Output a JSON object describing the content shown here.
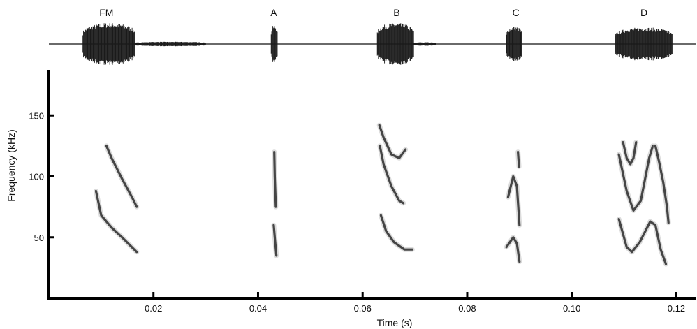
{
  "chart_data": {
    "type": "spectrogram",
    "title": "",
    "xlabel": "Time (s)",
    "ylabel": "Frequency (kHz)",
    "xlim": [
      0.0,
      0.124
    ],
    "ylim": [
      20,
      185
    ],
    "x_ticks": [
      0.02,
      0.04,
      0.06,
      0.08,
      0.1,
      0.12
    ],
    "x_tick_labels": [
      "0.02",
      "0.04",
      "0.06",
      "0.08",
      "0.10",
      "0.12"
    ],
    "y_ticks": [
      50,
      100,
      150
    ],
    "y_tick_labels": [
      "50",
      "100",
      "150"
    ],
    "waveform_labels": [
      {
        "label": "FM",
        "t": 0.011
      },
      {
        "label": "A",
        "t": 0.043
      },
      {
        "label": "B",
        "t": 0.0665
      },
      {
        "label": "C",
        "t": 0.0893
      },
      {
        "label": "D",
        "t": 0.1138
      }
    ],
    "waveform_segments": [
      {
        "t_start": 0.0065,
        "t_end": 0.0165,
        "amplitude": 0.95
      },
      {
        "t_start": 0.0165,
        "t_end": 0.03,
        "amplitude": 0.1
      },
      {
        "t_start": 0.0425,
        "t_end": 0.0437,
        "amplitude": 0.85
      },
      {
        "t_start": 0.0628,
        "t_end": 0.0698,
        "amplitude": 0.95
      },
      {
        "t_start": 0.0698,
        "t_end": 0.074,
        "amplitude": 0.08
      },
      {
        "t_start": 0.0875,
        "t_end": 0.0905,
        "amplitude": 0.8
      },
      {
        "t_start": 0.1083,
        "t_end": 0.1193,
        "amplitude": 0.75
      }
    ],
    "color": "#1a1a1a",
    "series": [
      {
        "call": "FM",
        "points": [
          [
            0.009,
            88
          ],
          [
            0.01,
            68
          ],
          [
            0.012,
            58
          ],
          [
            0.014,
            50
          ],
          [
            0.0168,
            38
          ]
        ]
      },
      {
        "call": "FM",
        "points": [
          [
            0.011,
            125
          ],
          [
            0.012,
            115
          ],
          [
            0.014,
            98
          ],
          [
            0.016,
            82
          ],
          [
            0.0168,
            75
          ]
        ]
      },
      {
        "call": "A",
        "points": [
          [
            0.043,
            60
          ],
          [
            0.0432,
            50
          ],
          [
            0.0435,
            35
          ]
        ]
      },
      {
        "call": "A",
        "points": [
          [
            0.0431,
            120
          ],
          [
            0.0432,
            100
          ],
          [
            0.0434,
            75
          ]
        ]
      },
      {
        "call": "B",
        "points": [
          [
            0.0635,
            68
          ],
          [
            0.0645,
            55
          ],
          [
            0.066,
            46
          ],
          [
            0.068,
            40
          ],
          [
            0.0695,
            40
          ]
        ]
      },
      {
        "call": "B",
        "points": [
          [
            0.0633,
            125
          ],
          [
            0.064,
            110
          ],
          [
            0.0655,
            92
          ],
          [
            0.067,
            80
          ],
          [
            0.0678,
            78
          ]
        ]
      },
      {
        "call": "B",
        "points": [
          [
            0.0632,
            142
          ],
          [
            0.064,
            132
          ],
          [
            0.0655,
            118
          ],
          [
            0.067,
            115
          ],
          [
            0.0682,
            122
          ]
        ]
      },
      {
        "call": "C",
        "points": [
          [
            0.0875,
            42
          ],
          [
            0.0888,
            50
          ],
          [
            0.0895,
            45
          ],
          [
            0.09,
            30
          ]
        ]
      },
      {
        "call": "C",
        "points": [
          [
            0.0878,
            83
          ],
          [
            0.0888,
            100
          ],
          [
            0.0895,
            92
          ],
          [
            0.09,
            60
          ]
        ]
      },
      {
        "call": "C",
        "points": [
          [
            0.0897,
            120
          ],
          [
            0.0899,
            108
          ]
        ]
      },
      {
        "call": "D",
        "points": [
          [
            0.109,
            65
          ],
          [
            0.1105,
            42
          ],
          [
            0.1115,
            38
          ],
          [
            0.113,
            46
          ],
          [
            0.115,
            63
          ],
          [
            0.116,
            60
          ],
          [
            0.117,
            40
          ],
          [
            0.118,
            28
          ]
        ]
      },
      {
        "call": "D",
        "points": [
          [
            0.109,
            118
          ],
          [
            0.1105,
            88
          ],
          [
            0.1118,
            72
          ],
          [
            0.1132,
            80
          ],
          [
            0.1148,
            115
          ],
          [
            0.1155,
            125
          ]
        ]
      },
      {
        "call": "D",
        "points": [
          [
            0.1098,
            128
          ],
          [
            0.1105,
            115
          ],
          [
            0.1112,
            110
          ],
          [
            0.1118,
            115
          ],
          [
            0.1123,
            128
          ]
        ]
      },
      {
        "call": "D",
        "points": [
          [
            0.116,
            125
          ],
          [
            0.1167,
            112
          ],
          [
            0.1175,
            95
          ],
          [
            0.1182,
            75
          ],
          [
            0.1185,
            62
          ]
        ]
      }
    ]
  }
}
